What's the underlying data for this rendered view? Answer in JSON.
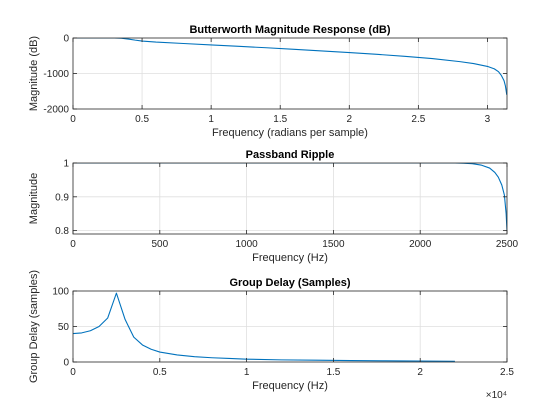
{
  "chart_data": [
    {
      "type": "line",
      "title": "Butterworth Magnitude Response (dB)",
      "xlabel": "Frequency (radians per sample)",
      "ylabel": "Magnitude (dB)",
      "xlim": [
        0,
        3.1416
      ],
      "ylim": [
        -2000,
        0
      ],
      "xticks": [
        0,
        0.5,
        1,
        1.5,
        2,
        2.5,
        3
      ],
      "xtick_labels": [
        "0",
        "0.5",
        "1",
        "1.5",
        "2",
        "2.5",
        "3"
      ],
      "yticks": [
        -2000,
        -1000,
        0
      ],
      "ytick_labels": [
        "-2000",
        "-1000",
        "0"
      ],
      "grid": true,
      "color": "#0072BD",
      "series": [
        {
          "x": [
            0,
            0.1,
            0.2,
            0.3,
            0.35,
            0.4,
            0.45,
            0.5,
            0.6,
            0.8,
            1.0,
            1.2,
            1.4,
            1.6,
            1.8,
            2.0,
            2.2,
            2.4,
            2.6,
            2.8,
            2.9,
            3.0,
            3.05,
            3.08,
            3.1,
            3.12,
            3.13,
            3.14
          ],
          "y": [
            0,
            0,
            0,
            0,
            -5,
            -30,
            -60,
            -85,
            -115,
            -155,
            -195,
            -235,
            -275,
            -320,
            -365,
            -410,
            -460,
            -515,
            -580,
            -665,
            -720,
            -800,
            -870,
            -950,
            -1050,
            -1200,
            -1350,
            -1600
          ]
        }
      ]
    },
    {
      "type": "line",
      "title": "Passband Ripple",
      "xlabel": "Frequency (Hz)",
      "ylabel": "Magnitude",
      "xlim": [
        0,
        2500
      ],
      "ylim": [
        0.79,
        1.0
      ],
      "xticks": [
        0,
        500,
        1000,
        1500,
        2000,
        2500
      ],
      "xtick_labels": [
        "0",
        "500",
        "1000",
        "1500",
        "2000",
        "2500"
      ],
      "yticks": [
        0.8,
        0.9,
        1.0
      ],
      "ytick_labels": [
        "0.8",
        "0.9",
        "1"
      ],
      "grid": true,
      "color": "#0072BD",
      "series": [
        {
          "x": [
            0,
            500,
            1000,
            1500,
            2000,
            2100,
            2200,
            2250,
            2300,
            2350,
            2400,
            2430,
            2450,
            2470,
            2485,
            2495,
            2500
          ],
          "y": [
            1.0,
            1.0,
            1.0,
            1.0,
            1.0,
            1.0,
            1.0,
            0.9995,
            0.998,
            0.994,
            0.985,
            0.972,
            0.958,
            0.935,
            0.905,
            0.85,
            0.8
          ]
        }
      ]
    },
    {
      "type": "line",
      "title": "Group Delay (Samples)",
      "xlabel": "Frequency (Hz)",
      "ylabel": "Group Delay (samples)",
      "xlim": [
        0,
        25000
      ],
      "ylim": [
        0,
        100
      ],
      "xticks": [
        0,
        5000,
        10000,
        15000,
        20000,
        25000
      ],
      "xtick_labels": [
        "0",
        "0.5",
        "1",
        "1.5",
        "2",
        "2.5"
      ],
      "x_exponent": "×10⁴",
      "yticks": [
        0,
        50,
        100
      ],
      "ytick_labels": [
        "0",
        "50",
        "100"
      ],
      "grid": true,
      "color": "#0072BD",
      "series": [
        {
          "x": [
            0,
            500,
            1000,
            1500,
            2000,
            2500,
            3000,
            3500,
            4000,
            4500,
            5000,
            6000,
            7000,
            8000,
            9000,
            10000,
            12000,
            14000,
            16000,
            18000,
            20000,
            22000
          ],
          "y": [
            40,
            41,
            44,
            50,
            62,
            97,
            60,
            35,
            24,
            18,
            14,
            10,
            7.5,
            6,
            5,
            4,
            3,
            2.5,
            2,
            1.6,
            1.3,
            1.0
          ]
        }
      ]
    }
  ]
}
